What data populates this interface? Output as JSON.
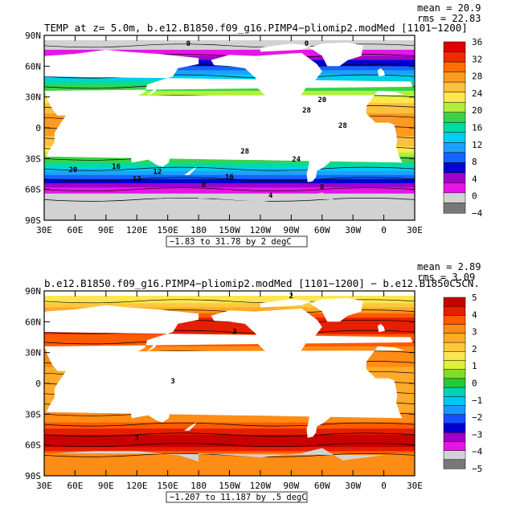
{
  "figure": {
    "panels": [
      {
        "title": "TEMP at z=    5.0m, b.e12.B1850.f09_g16.PIMP4−pliomip2.modMed [1101−1200]",
        "mean": "mean = 20.9",
        "rms": "rms = 22.83",
        "range_label": "−1.83 to 31.78 by 2 degC",
        "colorbar_labels": [
          "36",
          "32",
          "28",
          "24",
          "20",
          "16",
          "12",
          "8",
          "4",
          "0",
          "−4"
        ],
        "colorbar_colors": [
          "#dc0000",
          "#ee2a00",
          "#ff6e00",
          "#ff9a20",
          "#ffc040",
          "#ffe84c",
          "#b4ee3c",
          "#3cd246",
          "#00dca0",
          "#00cdf0",
          "#1ea0ff",
          "#1464ff",
          "#0000d2",
          "#a000c8",
          "#e614e6",
          "#d2d2d2",
          "#787878"
        ],
        "contour_labels": [
          "0",
          "0",
          "20",
          "28",
          "28",
          "28",
          "24",
          "20",
          "16",
          "12",
          "16",
          "12",
          "8",
          "8",
          "4"
        ]
      },
      {
        "title": "b.e12.B1850.f09_g16.PIMP4−pliomip2.modMed [1101−1200] − b.e12.B1850C5CN.",
        "mean": "mean = 2.89",
        "rms": "rms = 3.09",
        "range_label": "−1.207 to 11.187 by .5 degC",
        "colorbar_labels": [
          "5",
          "4",
          "3",
          "2",
          "1",
          "0",
          "−1",
          "−2",
          "−3",
          "−4",
          "−5"
        ],
        "colorbar_colors": [
          "#c80000",
          "#e61e00",
          "#ff5a00",
          "#ff8c14",
          "#ffaa28",
          "#ffc83c",
          "#ffe650",
          "#dcf03c",
          "#82dc28",
          "#28c83c",
          "#00d2b4",
          "#00c8f0",
          "#1e96ff",
          "#1450ff",
          "#0000d2",
          "#a000c8",
          "#e614e6",
          "#d2d2d2",
          "#787878"
        ],
        "contour_labels": [
          "2",
          "3",
          "3",
          "3"
        ]
      }
    ],
    "x_ticks": [
      "30E",
      "60E",
      "90E",
      "120E",
      "150E",
      "180",
      "150W",
      "120W",
      "90W",
      "60W",
      "30W",
      "0",
      "30E"
    ],
    "y_ticks": [
      "90N",
      "60N",
      "30N",
      "0",
      "30S",
      "60S",
      "90S"
    ]
  },
  "chart_data": [
    {
      "type": "heatmap",
      "title": "TEMP at z=    5.0m, b.e12.B1850.f09_g16.PIMP4−pliomip2.modMed [1101−1200]",
      "variable": "TEMP",
      "units": "degC",
      "x_ticks": [
        "30E",
        "60E",
        "90E",
        "120E",
        "150E",
        "180",
        "150W",
        "120W",
        "90W",
        "60W",
        "30W",
        "0",
        "30E"
      ],
      "y_ticks": [
        "90N",
        "60N",
        "30N",
        "0",
        "30S",
        "60S",
        "90S"
      ],
      "xlim": [
        30,
        390
      ],
      "ylim": [
        -90,
        90
      ],
      "contour_range": [
        -1.83,
        31.78
      ],
      "contour_interval": 2,
      "colorbar": [
        -4,
        0,
        4,
        8,
        12,
        16,
        20,
        24,
        28,
        32,
        36
      ],
      "mean": 20.9,
      "rms": 22.83,
      "approx_zonal_profile": {
        "lat": [
          -70,
          -60,
          -50,
          -40,
          -30,
          -20,
          0,
          20,
          40,
          60,
          80
        ],
        "value": [
          -1,
          2,
          8,
          14,
          19,
          24,
          28,
          26,
          18,
          8,
          -1
        ]
      }
    },
    {
      "type": "heatmap",
      "title": "b.e12.B1850.f09_g16.PIMP4−pliomip2.modMed [1101−1200] − b.e12.B1850C5CN.",
      "variable": "TEMP difference",
      "units": "degC",
      "x_ticks": [
        "30E",
        "60E",
        "90E",
        "120E",
        "150E",
        "180",
        "150W",
        "120W",
        "90W",
        "60W",
        "30W",
        "0",
        "30E"
      ],
      "y_ticks": [
        "90N",
        "60N",
        "30N",
        "0",
        "30S",
        "60S",
        "90S"
      ],
      "xlim": [
        30,
        390
      ],
      "ylim": [
        -90,
        90
      ],
      "contour_range": [
        -1.207,
        11.187
      ],
      "contour_interval": 0.5,
      "colorbar": [
        -5,
        -4,
        -3,
        -2,
        -1,
        0,
        1,
        2,
        3,
        4,
        5
      ],
      "mean": 2.89,
      "rms": 3.09,
      "approx_zonal_profile": {
        "lat": [
          -70,
          -60,
          -50,
          -40,
          -20,
          0,
          20,
          40,
          60,
          80
        ],
        "value": [
          3,
          5,
          4.5,
          3.5,
          2.5,
          2.5,
          3,
          3.5,
          4.5,
          1.5
        ]
      }
    }
  ]
}
